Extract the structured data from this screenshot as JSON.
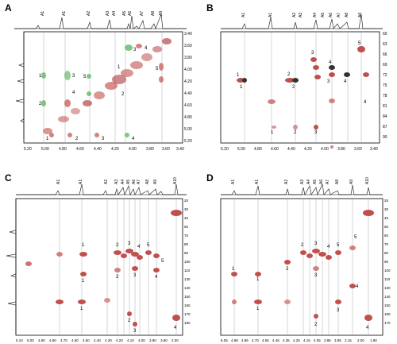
{
  "figure": {
    "panels": [
      {
        "label": "A",
        "top_peak_labels": [
          "A1",
          "A1",
          "A2",
          "A3",
          "A4",
          "A5",
          "A6",
          "A7",
          "A8",
          "A9"
        ],
        "x_ticks": [
          "5.20",
          "5.00",
          "4.80",
          "4.60",
          "4.40",
          "4.20",
          "4.00",
          "3.80",
          "3.60",
          "3.40"
        ],
        "y_ticks": [
          "3.40",
          "3.60",
          "3.80",
          "4.00",
          "4.20",
          "4.40",
          "4.60",
          "4.80",
          "5.00",
          "5.20"
        ],
        "annotations": [
          "1",
          "2",
          "3",
          "4",
          "5",
          "1",
          "2",
          "3",
          "4",
          "5",
          "1",
          "2",
          "3",
          "4"
        ]
      },
      {
        "label": "B",
        "top_peak_labels": [
          "A1",
          "A1",
          "A2",
          "A3",
          "A4",
          "A5",
          "A6",
          "A7",
          "A8",
          "A9"
        ],
        "x_ticks": [
          "5.20",
          "5.00",
          "4.80",
          "4.60",
          "4.40",
          "4.20",
          "4.00",
          "3.80",
          "3.60",
          "3.40"
        ],
        "y_ticks": [
          "60",
          "63",
          "66",
          "69",
          "72",
          "75",
          "78",
          "81",
          "84",
          "87",
          "90"
        ],
        "annotations": [
          "1",
          "2",
          "3",
          "4",
          "5",
          "1",
          "2",
          "3",
          "4",
          "1",
          "2",
          "3",
          "4"
        ]
      },
      {
        "label": "C",
        "top_peak_labels": [
          "A1",
          "A1",
          "A2",
          "A3",
          "A4",
          "A5",
          "A6",
          "A7",
          "A8",
          "A9",
          "A10"
        ],
        "x_ticks": [
          "5.10",
          "5.00",
          "4.90",
          "4.80",
          "4.70",
          "4.60",
          "4.50",
          "4.40",
          "4.30",
          "4.20",
          "4.10",
          "4.00",
          "3.90",
          "3.80",
          "2.00"
        ],
        "y_ticks": [
          "20",
          "30",
          "40",
          "60",
          "70",
          "80",
          "90",
          "100",
          "110",
          "130",
          "140",
          "150",
          "160",
          "170",
          "180"
        ],
        "annotations": [
          "1",
          "2",
          "3",
          "4",
          "5",
          "1",
          "2",
          "3",
          "4",
          "5",
          "1",
          "2",
          "3",
          "4"
        ]
      },
      {
        "label": "D",
        "top_peak_labels": [
          "A1",
          "A1",
          "A2",
          "A3",
          "A4",
          "A5",
          "A6",
          "A7",
          "A8",
          "A9",
          "A10"
        ],
        "x_ticks": [
          "5.05",
          "4.99",
          "4.85",
          "4.70",
          "4.55",
          "4.45",
          "4.35",
          "4.25",
          "4.15",
          "4.05",
          "3.95",
          "3.85",
          "2.15",
          "2.00",
          "1.90"
        ],
        "y_ticks": [
          "20",
          "30",
          "40",
          "50",
          "60",
          "70",
          "80",
          "90",
          "100",
          "110",
          "130",
          "140",
          "150",
          "160",
          "170"
        ],
        "annotations": [
          "1",
          "2",
          "3",
          "4",
          "5",
          "1",
          "2",
          "3",
          "4",
          "5",
          "1",
          "2",
          "3",
          "4"
        ]
      }
    ]
  }
}
